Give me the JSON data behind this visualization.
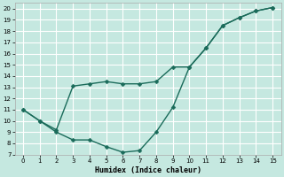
{
  "xlabel": "Humidex (Indice chaleur)",
  "background_color": "#c5e8e0",
  "grid_color": "#ffffff",
  "line_color": "#1a6b5a",
  "xlim": [
    -0.5,
    15.5
  ],
  "ylim": [
    7,
    20.5
  ],
  "xticks": [
    0,
    1,
    2,
    3,
    4,
    5,
    6,
    7,
    8,
    9,
    10,
    11,
    12,
    13,
    14,
    15
  ],
  "yticks": [
    7,
    8,
    9,
    10,
    11,
    12,
    13,
    14,
    15,
    16,
    17,
    18,
    19,
    20
  ],
  "line1_x": [
    0,
    1,
    2,
    3,
    4,
    5,
    6,
    7,
    8,
    9,
    10,
    11,
    12,
    13,
    14,
    15
  ],
  "line1_y": [
    11.0,
    10.0,
    9.0,
    8.3,
    8.3,
    7.7,
    7.2,
    7.35,
    9.0,
    11.2,
    14.8,
    16.5,
    18.5,
    19.2,
    19.8,
    20.1
  ],
  "line2_x": [
    0,
    1,
    2,
    3,
    4,
    5,
    6,
    7,
    8,
    9,
    10,
    11,
    12,
    13,
    14,
    15
  ],
  "line2_y": [
    11.0,
    10.0,
    9.2,
    13.1,
    13.3,
    13.5,
    13.3,
    13.3,
    13.5,
    14.8,
    14.8,
    16.5,
    18.5,
    19.2,
    19.8,
    20.1
  ],
  "marker": "D",
  "markersize": 2.5,
  "linewidth": 1.0
}
